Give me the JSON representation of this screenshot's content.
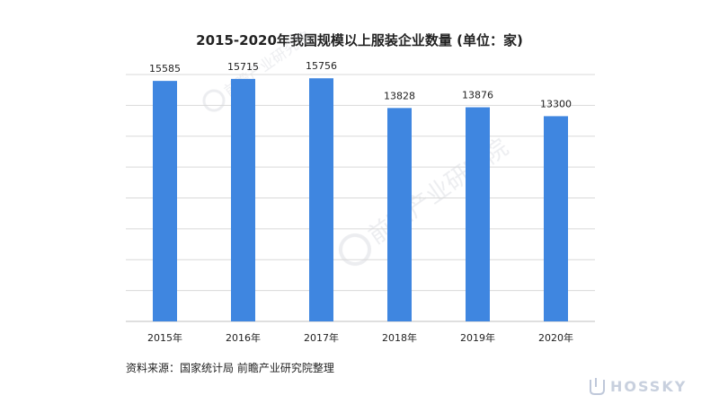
{
  "chart_data": {
    "type": "bar",
    "title": "2015-2020年我国规模以上服装企业数量 (单位：家)",
    "categories": [
      "2015年",
      "2016年",
      "2017年",
      "2018年",
      "2019年",
      "2020年"
    ],
    "values": [
      15585,
      15715,
      15756,
      13828,
      13876,
      13300
    ],
    "data_labels": [
      "15585",
      "15715",
      "15756",
      "13828",
      "13876",
      "13300"
    ],
    "xlabel": "",
    "ylabel": "",
    "ylim": [
      0,
      16000
    ],
    "grid": true,
    "legend": "none",
    "bar_color": "#3F86E0"
  },
  "source": "资料来源：国家统计局 前瞻产业研究院整理",
  "watermark": {
    "text": "前瞻产业研究院",
    "logo_text": "HOSSKY",
    "color": "#D0D3DA"
  }
}
